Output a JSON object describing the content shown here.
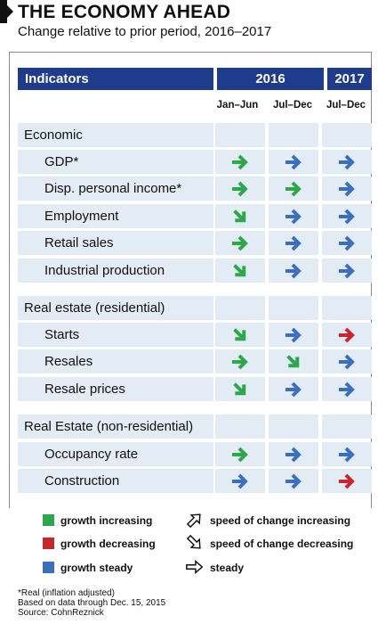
{
  "title": "THE ECONOMY AHEAD",
  "subtitle": "Change relative to prior period, 2016–2017",
  "header": {
    "indicators": "Indicators",
    "year2016": "2016",
    "year2017": "2017"
  },
  "columns": [
    "Jan–Jun",
    "Jul–Dec",
    "Jul–Dec"
  ],
  "colors": {
    "green": "#2aa84a",
    "red": "#c8252c",
    "blue": "#3a6fbf",
    "navy": "#1f3b8c",
    "rowbg": "#e3ebf4"
  },
  "rows": [
    {
      "label": "Economic",
      "section": true,
      "arrows": []
    },
    {
      "label": "GDP*",
      "section": false,
      "arrows": [
        [
          "green",
          "steady"
        ],
        [
          "blue",
          "steady"
        ],
        [
          "blue",
          "steady"
        ]
      ]
    },
    {
      "label": "Disp. personal income*",
      "section": false,
      "arrows": [
        [
          "green",
          "steady"
        ],
        [
          "green",
          "steady"
        ],
        [
          "blue",
          "steady"
        ]
      ]
    },
    {
      "label": "Employment",
      "section": false,
      "arrows": [
        [
          "green",
          "decreasing"
        ],
        [
          "blue",
          "steady"
        ],
        [
          "blue",
          "steady"
        ]
      ]
    },
    {
      "label": "Retail sales",
      "section": false,
      "arrows": [
        [
          "green",
          "steady"
        ],
        [
          "blue",
          "steady"
        ],
        [
          "blue",
          "steady"
        ]
      ]
    },
    {
      "label": "Industrial production",
      "section": false,
      "arrows": [
        [
          "green",
          "decreasing"
        ],
        [
          "blue",
          "steady"
        ],
        [
          "blue",
          "steady"
        ]
      ]
    },
    {
      "label": "Real estate (residential)",
      "section": true,
      "arrows": []
    },
    {
      "label": "Starts",
      "section": false,
      "arrows": [
        [
          "green",
          "decreasing"
        ],
        [
          "blue",
          "steady"
        ],
        [
          "red",
          "steady"
        ]
      ]
    },
    {
      "label": "Resales",
      "section": false,
      "arrows": [
        [
          "green",
          "steady"
        ],
        [
          "green",
          "decreasing"
        ],
        [
          "blue",
          "steady"
        ]
      ]
    },
    {
      "label": "Resale prices",
      "section": false,
      "arrows": [
        [
          "green",
          "decreasing"
        ],
        [
          "blue",
          "steady"
        ],
        [
          "blue",
          "steady"
        ]
      ]
    },
    {
      "label": "Real Estate (non-residential)",
      "section": true,
      "arrows": []
    },
    {
      "label": "Occupancy rate",
      "section": false,
      "arrows": [
        [
          "green",
          "steady"
        ],
        [
          "blue",
          "steady"
        ],
        [
          "blue",
          "steady"
        ]
      ]
    },
    {
      "label": "Construction",
      "section": false,
      "arrows": [
        [
          "blue",
          "steady"
        ],
        [
          "blue",
          "steady"
        ],
        [
          "red",
          "steady"
        ]
      ]
    }
  ],
  "legend": {
    "green": "growth increasing",
    "red": "growth decreasing",
    "blue": "growth steady",
    "up": "speed of change increasing",
    "down": "speed of change decreasing",
    "steady": "steady"
  },
  "footnotes": {
    "real": "*Real (inflation adjusted)",
    "based": "Based on data through Dec. 15, 2015",
    "source": "Source: CohnReznick"
  }
}
